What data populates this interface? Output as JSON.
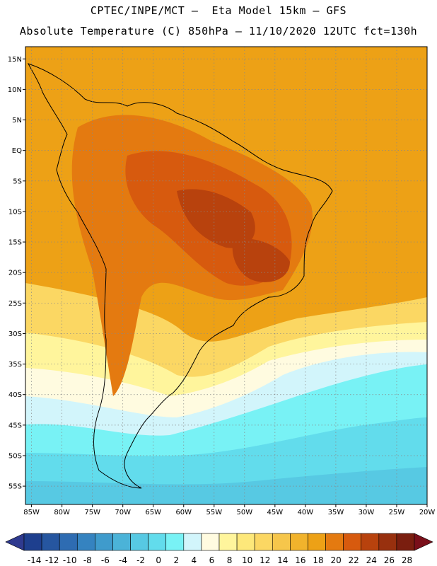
{
  "header": {
    "line1": "CPTEC/INPE/MCT –  Eta Model 15km – GFS",
    "line2": "Absolute Temperature (C) 850hPa – 11/10/2020 12UTC fct=130h"
  },
  "map": {
    "lat_labels": [
      "15N",
      "10N",
      "5N",
      "EQ",
      "5S",
      "10S",
      "15S",
      "20S",
      "25S",
      "30S",
      "35S",
      "40S",
      "45S",
      "50S",
      "55S"
    ],
    "lat_values": [
      15,
      10,
      5,
      0,
      -5,
      -10,
      -15,
      -20,
      -25,
      -30,
      -35,
      -40,
      -45,
      -50,
      -55
    ],
    "lon_labels": [
      "85W",
      "80W",
      "75W",
      "70W",
      "65W",
      "60W",
      "55W",
      "50W",
      "45W",
      "40W",
      "35W",
      "30W",
      "25W",
      "20W"
    ],
    "lon_values": [
      -85,
      -80,
      -75,
      -70,
      -65,
      -60,
      -55,
      -50,
      -45,
      -40,
      -35,
      -30,
      -25,
      -20
    ],
    "lat_range": [
      -58,
      17
    ],
    "lon_range": [
      -86,
      -20
    ]
  },
  "colorbar": {
    "labels": [
      "-14",
      "-12",
      "-10",
      "-8",
      "-6",
      "-4",
      "-2",
      "0",
      "2",
      "4",
      "6",
      "8",
      "10",
      "12",
      "14",
      "16",
      "18",
      "20",
      "22",
      "24",
      "26",
      "28"
    ],
    "colors": [
      "#1e3f8e",
      "#2656a0",
      "#2e6cb2",
      "#3583c0",
      "#3f9bcc",
      "#4bb3d8",
      "#57c9e3",
      "#62dcec",
      "#78f2f5",
      "#d2f5fb",
      "#fffbe0",
      "#fff59c",
      "#fde87a",
      "#fbd763",
      "#f6c64b",
      "#f1b32c",
      "#eda116",
      "#e47a10",
      "#d75a0e",
      "#b8420d",
      "#98300e",
      "#7a1e0f"
    ],
    "under_color": "#2f3a8f",
    "over_color": "#7a0f1a"
  }
}
